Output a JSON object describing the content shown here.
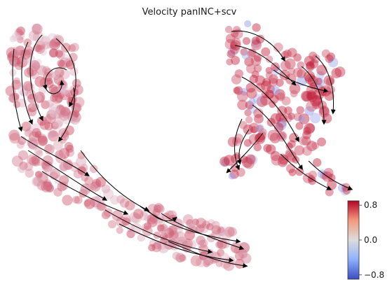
{
  "chart_data": {
    "type": "scatter",
    "title": "Velocity panINC+scv",
    "xlabel": "",
    "ylabel": "",
    "grid": false,
    "frame": false,
    "overlay": "velocity streamlines with arrowheads (black)",
    "colormap": {
      "name": "coolwarm",
      "ticks": [
        0.8,
        0.0,
        -0.8
      ],
      "tick_labels": [
        "0.8",
        "0.0",
        "−0.8"
      ],
      "vmin": -0.9,
      "vmax": 0.9,
      "low_color": "#6f7fe3",
      "mid_color": "#e8e4f0",
      "high_color": "#c21f3a"
    },
    "clusters": [
      {
        "name": "",
        "region": "left trajectory (upper loop)",
        "value_mean": 0.45,
        "color": "#eea58d"
      },
      {
        "name": "",
        "region": "left trajectory (lower stem)",
        "value_mean": 0.5,
        "color": "#e8937a"
      },
      {
        "name": "",
        "region": "right branching cluster",
        "value_mean": 0.85,
        "color": "#c0233f"
      }
    ]
  }
}
